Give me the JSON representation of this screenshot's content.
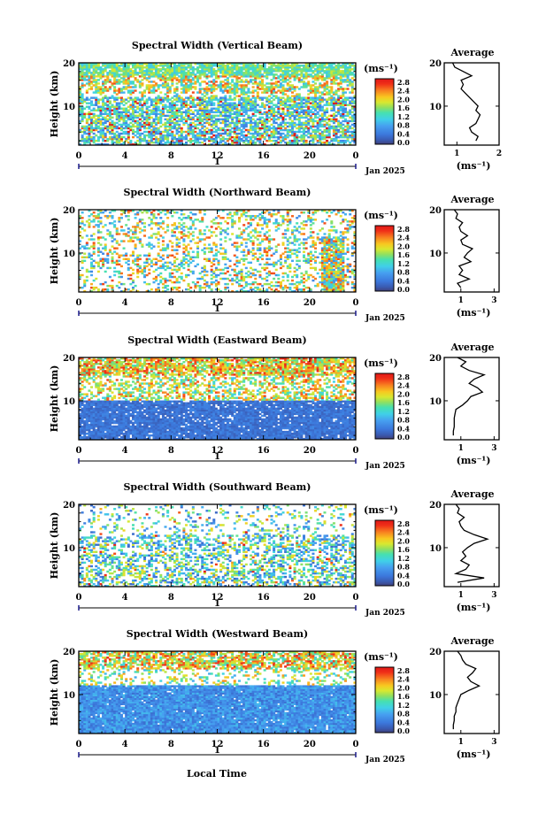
{
  "common": {
    "ylabel": "Height (km)",
    "unit": "(ms⁻¹)",
    "date_label": "Jan 2025",
    "day_label": "1",
    "xlabel": "Local Time",
    "avg_title": "Average",
    "x_ticks": [
      "0",
      "4",
      "8",
      "12",
      "16",
      "20",
      "0"
    ],
    "y_ticks": [
      "20",
      "10"
    ],
    "colorbar_ticks": [
      "2.8",
      "2.4",
      "2.0",
      "1.6",
      "1.2",
      "0.8",
      "0.4",
      "0.0"
    ]
  },
  "chart_data": [
    {
      "type": "heatmap",
      "title": "Spectral Width (Vertical Beam)",
      "xlim": [
        0,
        24
      ],
      "ylim": [
        1,
        20
      ],
      "clim": [
        0,
        3.0
      ],
      "average": {
        "xlim": [
          0.7,
          2.0
        ],
        "x_ticks": [
          "1",
          "2"
        ],
        "x_tick_values": [
          1,
          2
        ],
        "profile": [
          [
            2,
            1.45
          ],
          [
            3,
            1.5
          ],
          [
            4,
            1.35
          ],
          [
            5,
            1.3
          ],
          [
            6,
            1.45
          ],
          [
            7,
            1.5
          ],
          [
            8,
            1.55
          ],
          [
            9,
            1.45
          ],
          [
            10,
            1.5
          ],
          [
            11,
            1.4
          ],
          [
            12,
            1.3
          ],
          [
            13,
            1.2
          ],
          [
            14,
            1.1
          ],
          [
            15,
            1.15
          ],
          [
            16,
            1.1
          ],
          [
            17,
            1.35
          ],
          [
            18,
            1.15
          ],
          [
            19,
            0.95
          ],
          [
            20,
            0.9
          ]
        ]
      }
    },
    {
      "type": "heatmap",
      "title": "Spectral Width (Northward Beam)",
      "xlim": [
        0,
        24
      ],
      "ylim": [
        1,
        20
      ],
      "clim": [
        0,
        3.0
      ],
      "average": {
        "xlim": [
          0,
          3.3
        ],
        "x_ticks": [
          "1",
          "3"
        ],
        "x_tick_values": [
          1,
          3
        ],
        "profile": [
          [
            2,
            1.0
          ],
          [
            3,
            0.8
          ],
          [
            4,
            1.5
          ],
          [
            5,
            0.9
          ],
          [
            6,
            1.1
          ],
          [
            7,
            0.9
          ],
          [
            8,
            1.6
          ],
          [
            9,
            1.2
          ],
          [
            10,
            1.4
          ],
          [
            11,
            1.7
          ],
          [
            12,
            1.1
          ],
          [
            13,
            1.0
          ],
          [
            14,
            1.4
          ],
          [
            15,
            1.0
          ],
          [
            16,
            0.9
          ],
          [
            17,
            1.1
          ],
          [
            18,
            0.7
          ],
          [
            19,
            0.8
          ],
          [
            20,
            0.6
          ]
        ]
      }
    },
    {
      "type": "heatmap",
      "title": "Spectral Width (Eastward Beam)",
      "xlim": [
        0,
        24
      ],
      "ylim": [
        1,
        20
      ],
      "clim": [
        0,
        3.0
      ],
      "average": {
        "xlim": [
          0,
          3.3
        ],
        "x_ticks": [
          "1",
          "3"
        ],
        "x_tick_values": [
          1,
          3
        ],
        "profile": [
          [
            2,
            0.55
          ],
          [
            3,
            0.55
          ],
          [
            4,
            0.6
          ],
          [
            5,
            0.6
          ],
          [
            6,
            0.6
          ],
          [
            7,
            0.65
          ],
          [
            8,
            0.7
          ],
          [
            9,
            1.1
          ],
          [
            10,
            1.4
          ],
          [
            11,
            1.6
          ],
          [
            12,
            2.3
          ],
          [
            13,
            2.0
          ],
          [
            14,
            1.5
          ],
          [
            15,
            1.8
          ],
          [
            16,
            2.4
          ],
          [
            17,
            1.5
          ],
          [
            18,
            1.0
          ],
          [
            19,
            1.3
          ],
          [
            20,
            0.8
          ]
        ]
      }
    },
    {
      "type": "heatmap",
      "title": "Spectral Width (Southward Beam)",
      "xlim": [
        0,
        24
      ],
      "ylim": [
        1,
        20
      ],
      "clim": [
        0,
        3.0
      ],
      "average": {
        "xlim": [
          0,
          3.3
        ],
        "x_ticks": [
          "1",
          "3"
        ],
        "x_tick_values": [
          1,
          3
        ],
        "profile": [
          [
            2,
            0.8
          ],
          [
            3,
            2.4
          ],
          [
            4,
            0.7
          ],
          [
            5,
            1.3
          ],
          [
            6,
            1.5
          ],
          [
            7,
            1.0
          ],
          [
            8,
            1.3
          ],
          [
            9,
            1.1
          ],
          [
            10,
            1.4
          ],
          [
            11,
            1.8
          ],
          [
            12,
            2.6
          ],
          [
            13,
            1.8
          ],
          [
            14,
            1.2
          ],
          [
            15,
            1.0
          ],
          [
            16,
            0.9
          ],
          [
            17,
            1.2
          ],
          [
            18,
            0.8
          ],
          [
            19,
            0.9
          ],
          [
            20,
            0.7
          ]
        ]
      }
    },
    {
      "type": "heatmap",
      "title": "Spectral Width (Westward Beam)",
      "xlim": [
        0,
        24
      ],
      "ylim": [
        1,
        20
      ],
      "clim": [
        0,
        3.0
      ],
      "average": {
        "xlim": [
          0,
          3.3
        ],
        "x_ticks": [
          "1",
          "3"
        ],
        "x_tick_values": [
          1,
          3
        ],
        "profile": [
          [
            2,
            0.55
          ],
          [
            3,
            0.55
          ],
          [
            4,
            0.6
          ],
          [
            5,
            0.6
          ],
          [
            6,
            0.7
          ],
          [
            7,
            0.7
          ],
          [
            8,
            0.8
          ],
          [
            9,
            0.9
          ],
          [
            10,
            1.0
          ],
          [
            11,
            1.5
          ],
          [
            12,
            2.1
          ],
          [
            13,
            1.6
          ],
          [
            14,
            1.4
          ],
          [
            15,
            1.7
          ],
          [
            16,
            1.9
          ],
          [
            17,
            1.3
          ],
          [
            18,
            1.1
          ],
          [
            19,
            1.0
          ],
          [
            20,
            0.8
          ]
        ]
      }
    }
  ]
}
